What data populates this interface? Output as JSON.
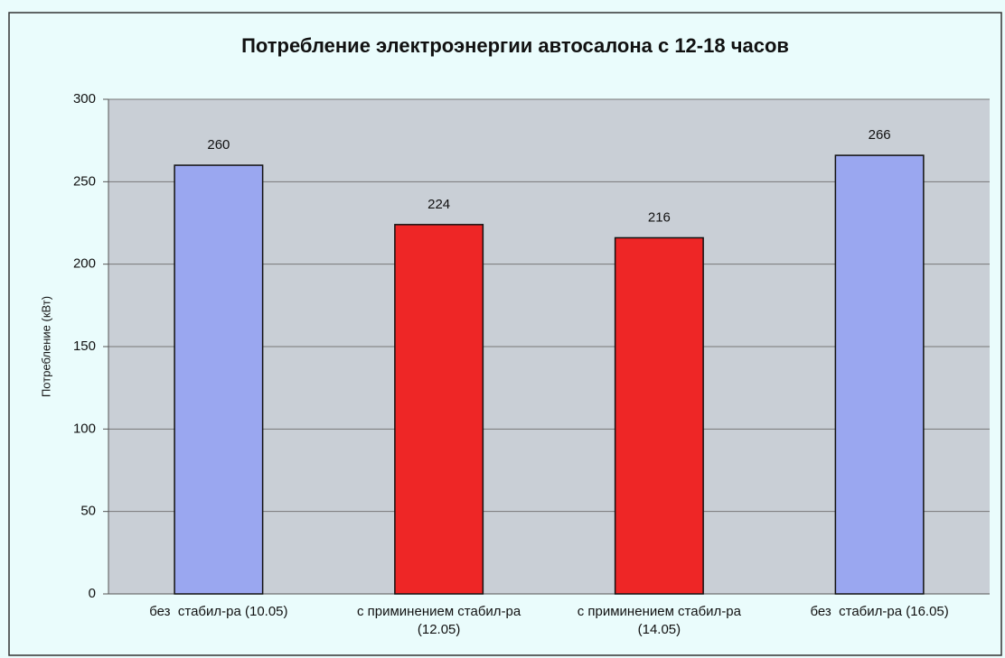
{
  "chart_data": {
    "type": "bar",
    "title": "Потребление электроэнергии автосалона с  12-18 часов",
    "y_label": "Потребление (кВт)",
    "categories": [
      "без  стабил-ра (10.05)",
      "с приминением стабил-ра (12.05)",
      "с приминением стабил-ра (14.05)",
      "без  стабил-ра (16.05)"
    ],
    "values": [
      260,
      224,
      216,
      266
    ],
    "colors": [
      "#9aa7f0",
      "#ee2626",
      "#ee2626",
      "#9aa7f0"
    ],
    "ylim": [
      0,
      300
    ],
    "yticks": [
      0,
      50,
      100,
      150,
      200,
      250,
      300
    ],
    "grid": true
  }
}
